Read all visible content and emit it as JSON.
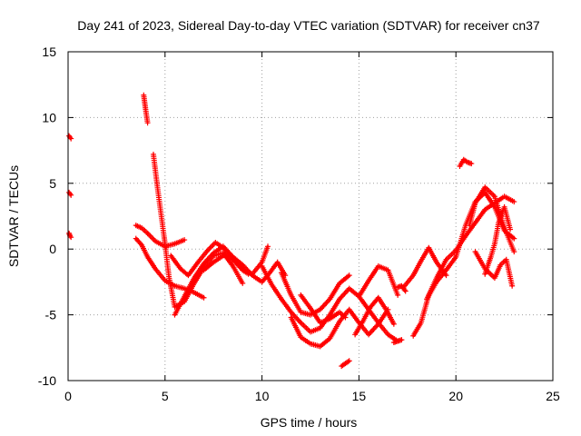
{
  "chart_data": {
    "type": "scatter",
    "title": "Day 241 of 2023, Sidereal Day-to-day VTEC variation (SDTVAR) for receiver cn37",
    "xlabel": "GPS time / hours",
    "ylabel": "SDTVAR / TECUs",
    "xlim": [
      0,
      25
    ],
    "ylim": [
      -10,
      15
    ],
    "x_ticks": [
      0,
      5,
      10,
      15,
      20,
      25
    ],
    "x_tick_labels": [
      "0",
      "5",
      "10",
      "15",
      "20",
      "25"
    ],
    "y_ticks": [
      -10,
      -5,
      0,
      5,
      10,
      15
    ],
    "y_tick_labels": [
      "-10",
      "-5",
      "0",
      "5",
      "10",
      "15"
    ],
    "grid": true,
    "marker": "plus",
    "marker_color": "#ff0000",
    "series": [
      {
        "name": "segment-1",
        "x": [
          0.05,
          0.1,
          0.15
        ],
        "y": [
          8.6,
          8.5,
          8.4
        ]
      },
      {
        "name": "segment-2",
        "x": [
          0.05,
          0.1,
          0.15
        ],
        "y": [
          4.3,
          4.2,
          4.1
        ]
      },
      {
        "name": "segment-3",
        "x": [
          0.05,
          0.1,
          0.15
        ],
        "y": [
          1.2,
          1.0,
          0.9
        ]
      },
      {
        "name": "segment-4",
        "x": [
          3.5,
          3.8,
          4.1,
          4.5,
          5.0,
          5.5,
          6.0
        ],
        "y": [
          1.8,
          1.6,
          1.2,
          0.6,
          0.2,
          0.4,
          0.7
        ]
      },
      {
        "name": "segment-5",
        "x": [
          3.5,
          3.8,
          4.1,
          4.5,
          5.0,
          5.5,
          6.0,
          6.5,
          7.0
        ],
        "y": [
          0.8,
          0.3,
          -0.6,
          -1.5,
          -2.4,
          -2.8,
          -3.0,
          -3.3,
          -3.7
        ]
      },
      {
        "name": "segment-6",
        "x": [
          3.9,
          4.0,
          4.1
        ],
        "y": [
          11.7,
          10.6,
          9.6
        ]
      },
      {
        "name": "segment-7",
        "x": [
          4.4,
          4.6,
          4.8,
          5.0,
          5.2,
          5.5,
          6.0,
          6.5,
          7.0,
          7.5,
          8.0,
          8.5,
          9.0
        ],
        "y": [
          7.2,
          4.8,
          2.6,
          0.4,
          -2.1,
          -4.4,
          -4.0,
          -2.6,
          -1.4,
          -0.5,
          -0.3,
          -1.3,
          -2.6
        ]
      },
      {
        "name": "segment-8",
        "x": [
          5.5,
          6.0,
          6.5,
          7.0,
          7.5,
          8.0,
          8.5,
          9.0,
          9.5,
          10.0,
          10.3
        ],
        "y": [
          -5.0,
          -3.6,
          -2.2,
          -1.1,
          -0.3,
          0.2,
          -0.6,
          -1.6,
          -1.9,
          -1.0,
          0.2
        ]
      },
      {
        "name": "segment-9",
        "x": [
          5.3,
          5.8,
          6.2,
          6.7,
          7.2,
          7.6,
          8.0,
          8.5,
          9.0,
          9.3
        ],
        "y": [
          -0.5,
          -1.5,
          -2.0,
          -1.0,
          -0.1,
          0.5,
          0.1,
          -0.8,
          -1.6,
          -1.9
        ]
      },
      {
        "name": "segment-10",
        "x": [
          7.0,
          7.5,
          8.0,
          8.5,
          9.0,
          9.5,
          10.0,
          10.4,
          10.8,
          11.2
        ],
        "y": [
          -1.6,
          -1.0,
          -0.5,
          -0.6,
          -1.2,
          -2.0,
          -2.5,
          -1.8,
          -1.0,
          -2.0
        ]
      },
      {
        "name": "segment-11",
        "x": [
          10.0,
          10.5,
          11.0,
          11.5,
          12.0,
          12.5,
          13.0,
          13.5,
          14.0,
          14.5,
          15.0,
          15.5,
          16.0,
          16.5,
          17.0
        ],
        "y": [
          -1.3,
          -2.7,
          -3.8,
          -4.8,
          -5.6,
          -6.3,
          -6.0,
          -5.0,
          -3.8,
          -3.0,
          -3.6,
          -4.6,
          -5.6,
          -6.5,
          -7.0
        ]
      },
      {
        "name": "segment-12",
        "x": [
          11.5,
          12.0,
          12.5,
          13.0,
          13.5,
          14.0,
          14.5,
          15.0,
          15.5,
          16.0,
          16.5
        ],
        "y": [
          -5.2,
          -6.7,
          -7.2,
          -7.4,
          -6.8,
          -5.5,
          -4.6,
          -5.6,
          -6.5,
          -5.7,
          -4.6
        ]
      },
      {
        "name": "segment-13",
        "x": [
          11.0,
          11.5,
          12.0,
          12.5,
          13.0,
          13.5,
          14.0,
          14.5
        ],
        "y": [
          -1.8,
          -3.5,
          -4.8,
          -5.0,
          -4.6,
          -3.8,
          -2.6,
          -2.0
        ]
      },
      {
        "name": "segment-14",
        "x": [
          12.0,
          12.5,
          13.0,
          13.5,
          14.0,
          14.3
        ],
        "y": [
          -3.5,
          -4.5,
          -5.6,
          -5.3,
          -4.8,
          -5.2
        ]
      },
      {
        "name": "segment-15",
        "x": [
          14.1,
          14.3,
          14.5
        ],
        "y": [
          -8.9,
          -8.7,
          -8.5
        ]
      },
      {
        "name": "segment-16",
        "x": [
          14.8,
          15.2,
          15.6,
          16.0,
          16.4,
          16.8
        ],
        "y": [
          -6.5,
          -5.5,
          -4.4,
          -3.7,
          -4.6,
          -5.7
        ]
      },
      {
        "name": "segment-17",
        "x": [
          15.0,
          15.5,
          16.0,
          16.5,
          17.0
        ],
        "y": [
          -3.6,
          -2.4,
          -1.3,
          -1.6,
          -3.5
        ]
      },
      {
        "name": "segment-18",
        "x": [
          16.8,
          17.0,
          17.2
        ],
        "y": [
          -7.1,
          -7.0,
          -6.9
        ]
      },
      {
        "name": "segment-19",
        "x": [
          17.0,
          17.2,
          17.4
        ],
        "y": [
          -2.9,
          -2.8,
          -3.2
        ]
      },
      {
        "name": "segment-20",
        "x": [
          17.8,
          18.2,
          18.6,
          19.0,
          19.5,
          20.0,
          20.5,
          21.0,
          21.5,
          22.0,
          22.5,
          23.0
        ],
        "y": [
          -6.6,
          -5.6,
          -3.5,
          -2.2,
          -0.8,
          -0.1,
          1.0,
          2.0,
          3.0,
          3.5,
          4.0,
          3.6
        ]
      },
      {
        "name": "segment-21",
        "x": [
          18.5,
          19.0,
          19.5,
          20.0,
          20.5,
          21.0,
          21.5,
          22.0,
          22.5,
          23.0
        ],
        "y": [
          -3.8,
          -2.5,
          -1.6,
          -0.6,
          1.8,
          3.6,
          4.3,
          3.2,
          1.4,
          0.8
        ]
      },
      {
        "name": "segment-22",
        "x": [
          17.3,
          17.8,
          18.2,
          18.6,
          19.0,
          19.5
        ],
        "y": [
          -2.9,
          -2.0,
          -0.9,
          0.1,
          -1.0,
          -2.0
        ]
      },
      {
        "name": "segment-23",
        "x": [
          20.2,
          20.4,
          20.6,
          20.8
        ],
        "y": [
          6.3,
          6.8,
          6.6,
          6.5
        ]
      },
      {
        "name": "segment-24",
        "x": [
          20.7,
          21.0,
          21.5,
          22.0,
          22.5,
          23.0
        ],
        "y": [
          1.8,
          3.5,
          4.7,
          4.0,
          1.6,
          -0.2
        ]
      },
      {
        "name": "segment-25",
        "x": [
          21.0,
          21.5,
          22.0,
          22.3,
          22.6,
          22.9
        ],
        "y": [
          -0.2,
          -1.5,
          -2.2,
          -1.2,
          -0.8,
          -2.8
        ]
      },
      {
        "name": "segment-26",
        "x": [
          21.5,
          21.8,
          22.0,
          22.2,
          22.5,
          22.8
        ],
        "y": [
          -1.9,
          -0.6,
          0.4,
          2.0,
          3.2,
          1.5
        ]
      }
    ]
  }
}
